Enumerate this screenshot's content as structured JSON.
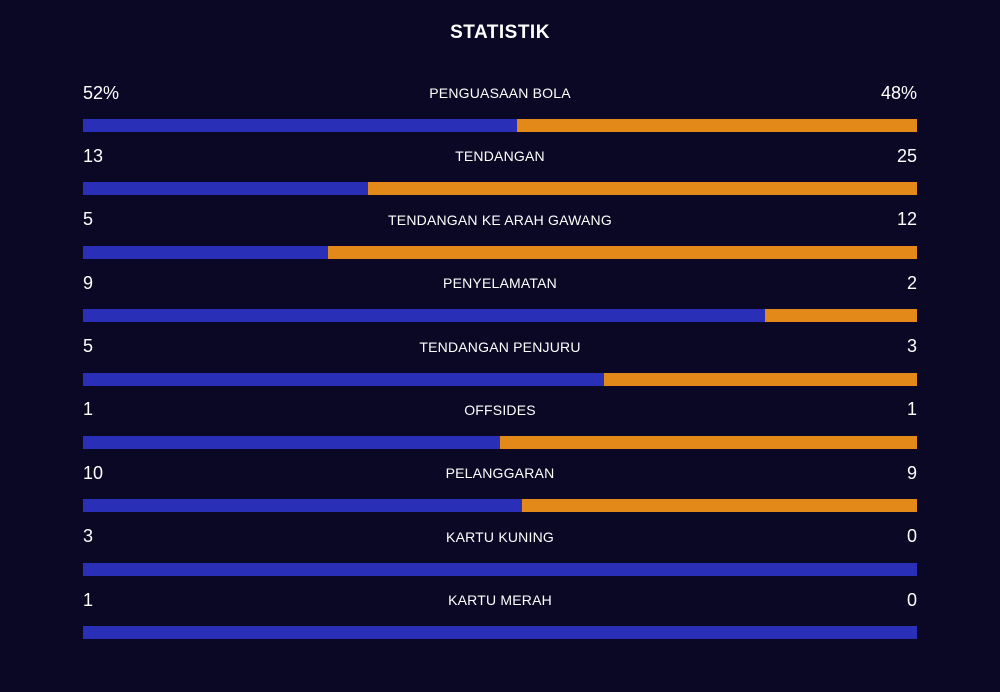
{
  "title": "STATISTIK",
  "colors": {
    "background": "#0a0824",
    "home": "#2a2fb8",
    "away": "#e3891a"
  },
  "stats": [
    {
      "label": "PENGUASAAN BOLA",
      "home": "52%",
      "away": "48%",
      "home_share": 0.52
    },
    {
      "label": "TENDANGAN",
      "home": "13",
      "away": "25",
      "home_share": 0.342
    },
    {
      "label": "TENDANGAN KE ARAH GAWANG",
      "home": "5",
      "away": "12",
      "home_share": 0.294
    },
    {
      "label": "PENYELAMATAN",
      "home": "9",
      "away": "2",
      "home_share": 0.818
    },
    {
      "label": "TENDANGAN PENJURU",
      "home": "5",
      "away": "3",
      "home_share": 0.625
    },
    {
      "label": "OFFSIDES",
      "home": "1",
      "away": "1",
      "home_share": 0.5
    },
    {
      "label": "PELANGGARAN",
      "home": "10",
      "away": "9",
      "home_share": 0.526
    },
    {
      "label": "KARTU KUNING",
      "home": "3",
      "away": "0",
      "home_share": 1.0
    },
    {
      "label": "KARTU MERAH",
      "home": "1",
      "away": "0",
      "home_share": 1.0
    }
  ]
}
